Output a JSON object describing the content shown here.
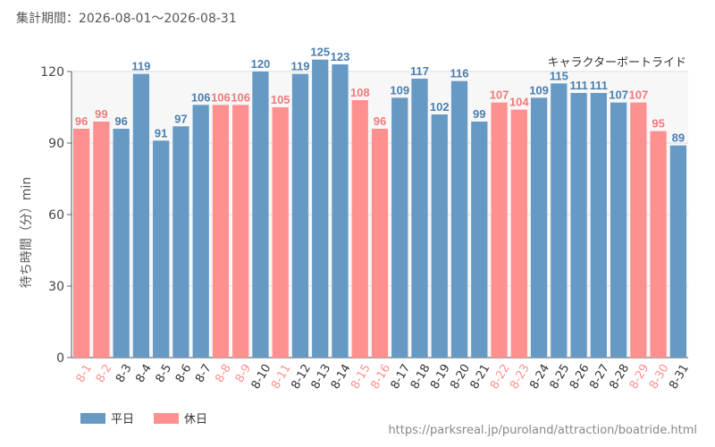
{
  "period_label": "集計期間：2026-08-01～2026-08-31",
  "source_url": "https://parksreal.jp/puroland/attraction/boatride.html",
  "colors": {
    "weekday": "#6699c4",
    "holiday": "#ff9090",
    "weekday_label": "#4a7eb0",
    "holiday_label": "#f07a7a"
  },
  "chart_data": {
    "type": "bar",
    "title": "キャラクターボートライド",
    "ylabel": "待ち時間（分）min",
    "ylim": [
      0,
      120
    ],
    "yticks": [
      0,
      30,
      60,
      90,
      120
    ],
    "grid": true,
    "legend_position": "bottom-left",
    "categories": [
      "8-1",
      "8-2",
      "8-3",
      "8-4",
      "8-5",
      "8-6",
      "8-7",
      "8-8",
      "8-9",
      "8-10",
      "8-11",
      "8-12",
      "8-13",
      "8-14",
      "8-15",
      "8-16",
      "8-17",
      "8-18",
      "8-19",
      "8-20",
      "8-21",
      "8-22",
      "8-23",
      "8-24",
      "8-25",
      "8-26",
      "8-27",
      "8-28",
      "8-29",
      "8-30",
      "8-31"
    ],
    "values": [
      96,
      99,
      96,
      119,
      91,
      97,
      106,
      106,
      106,
      120,
      105,
      119,
      125,
      123,
      108,
      96,
      109,
      117,
      102,
      116,
      99,
      107,
      104,
      109,
      115,
      111,
      111,
      107,
      107,
      95,
      89
    ],
    "day_type": [
      "休日",
      "休日",
      "平日",
      "平日",
      "平日",
      "平日",
      "平日",
      "休日",
      "休日",
      "平日",
      "休日",
      "平日",
      "平日",
      "平日",
      "休日",
      "休日",
      "平日",
      "平日",
      "平日",
      "平日",
      "平日",
      "休日",
      "休日",
      "平日",
      "平日",
      "平日",
      "平日",
      "平日",
      "休日",
      "休日",
      "平日"
    ],
    "legend": [
      {
        "key": "平日",
        "label": "平日",
        "color": "#6699c4"
      },
      {
        "key": "休日",
        "label": "休日",
        "color": "#ff9090"
      }
    ]
  }
}
